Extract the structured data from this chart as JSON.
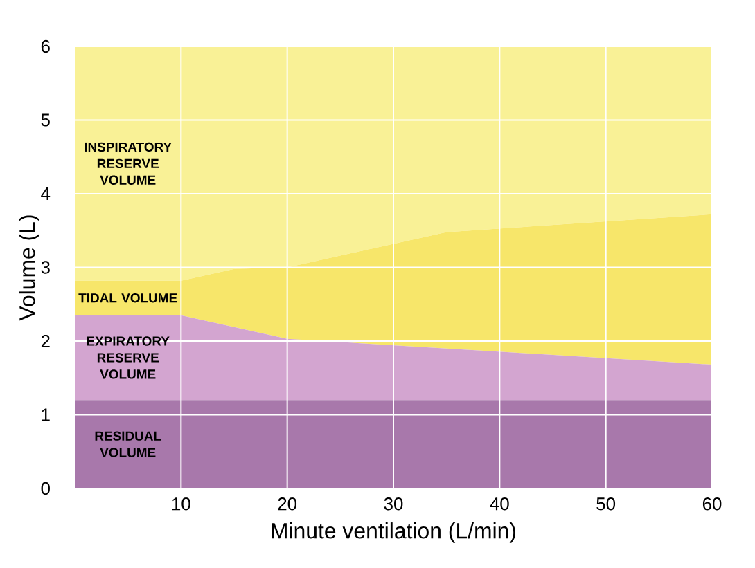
{
  "chart_data": {
    "type": "area",
    "stacked": true,
    "xlabel": "Minute ventilation (L/min)",
    "ylabel": "Volume (L)",
    "x": [
      0,
      10,
      15,
      20,
      35,
      60
    ],
    "series": [
      {
        "name": "RESIDUAL VOLUME",
        "color": "#a878ab",
        "values": [
          1.2,
          1.2,
          1.2,
          1.2,
          1.2,
          1.2
        ]
      },
      {
        "name": "EXPIRATORY RESERVE VOLUME",
        "color": "#d3a5d0",
        "values": [
          1.15,
          1.15,
          0.99,
          0.83,
          0.7,
          0.48
        ]
      },
      {
        "name": "TIDAL VOLUME",
        "color": "#f7e66a",
        "values": [
          0.47,
          0.47,
          0.79,
          0.97,
          1.58,
          2.04
        ]
      },
      {
        "name": "INSPIRATORY RESERVE VOLUME",
        "color": "#f9f196",
        "values": [
          3.18,
          3.18,
          3.02,
          3.0,
          2.52,
          2.28
        ]
      }
    ],
    "xlim": [
      0,
      60
    ],
    "ylim": [
      0,
      6
    ],
    "xticks": [
      {
        "value": 0,
        "label": null
      },
      10,
      20,
      30,
      40,
      50,
      60
    ],
    "yticks": [
      0,
      1,
      2,
      3,
      4,
      5,
      6
    ],
    "grid": true,
    "legend": false
  }
}
